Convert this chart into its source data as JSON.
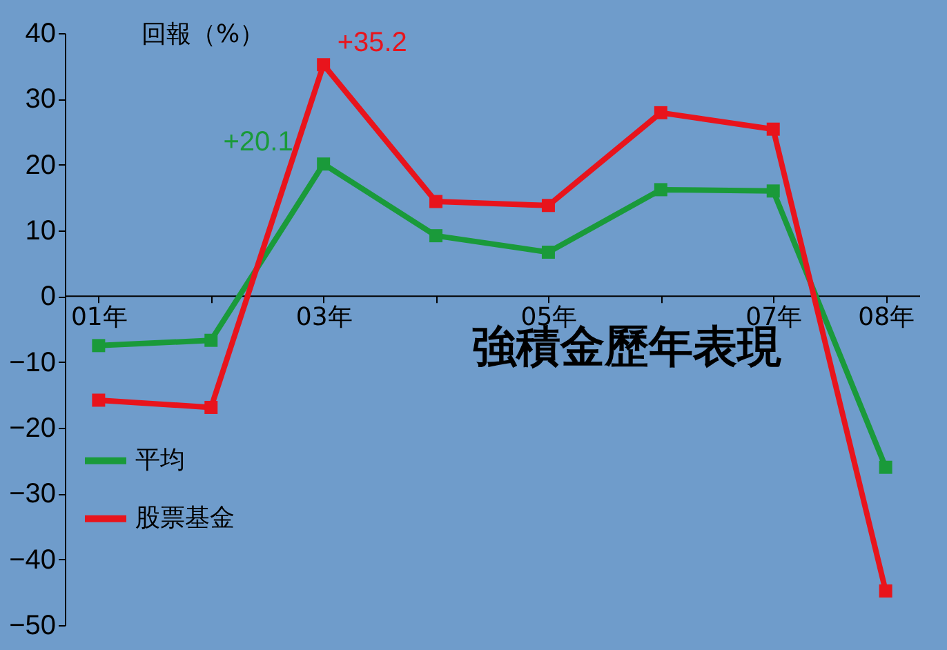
{
  "chart_data": {
    "type": "line",
    "title": "強積金歷年表現",
    "ylabel": "回報（%）",
    "categories": [
      "01年",
      null,
      "03年",
      null,
      "05年",
      null,
      "07年",
      "08年"
    ],
    "series": [
      {
        "name": "平均",
        "color": "#1a9a3a",
        "values": [
          -7.5,
          -6.7,
          20.1,
          9.2,
          6.7,
          16.2,
          16,
          -26
        ],
        "value_labels": [
          null,
          null,
          "+20.1",
          null,
          null,
          null,
          null,
          null
        ]
      },
      {
        "name": "股票基金",
        "color": "#e8141c",
        "values": [
          -15.8,
          -16.9,
          35.2,
          14.4,
          13.8,
          27.9,
          25.4,
          -44.8
        ],
        "value_labels": [
          null,
          null,
          "+35.2",
          null,
          null,
          null,
          null,
          null
        ]
      }
    ],
    "ylim": [
      -50,
      40
    ],
    "yticks": [
      -50,
      -40,
      -30,
      -20,
      -10,
      0,
      10,
      20,
      30,
      40
    ],
    "grid": false,
    "legend": "left",
    "marker": "square",
    "line_style": "solid"
  }
}
